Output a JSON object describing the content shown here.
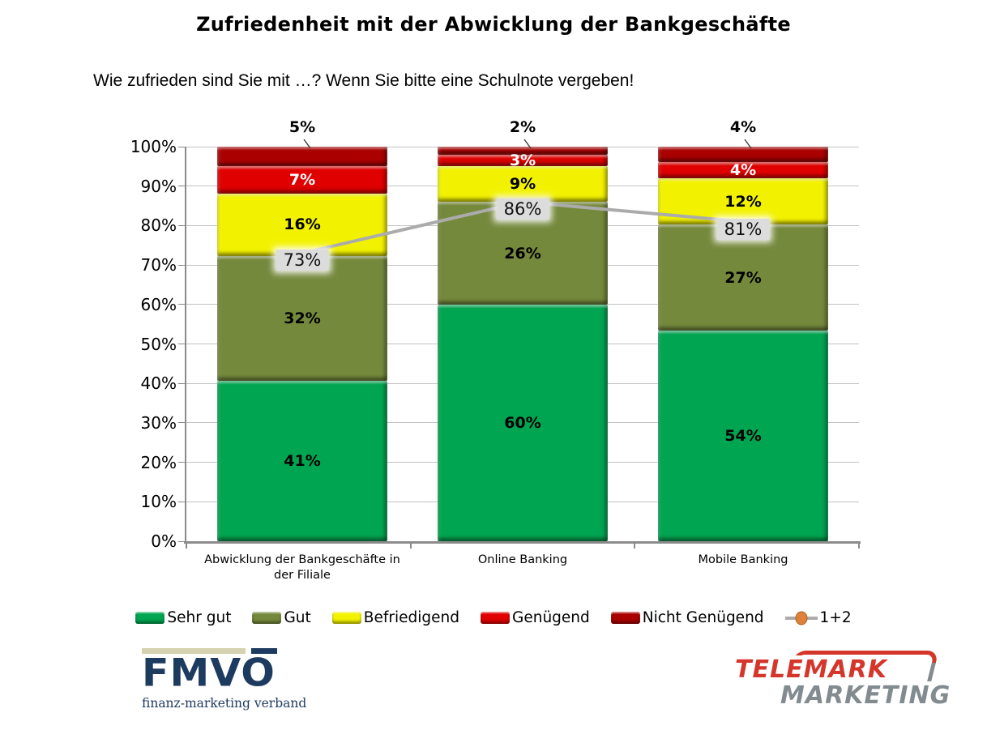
{
  "title": "Zufriedenheit mit der Abwicklung der Bankgeschäfte",
  "question": "Wie zufrieden sind Sie mit …? Wenn Sie bitte eine Schulnote vergeben!",
  "chart_data": {
    "type": "bar",
    "subtype": "stacked-percent-with-line",
    "categories": [
      "Abwicklung der Bankgeschäfte in der Filiale",
      "Online Banking",
      "Mobile Banking"
    ],
    "series": [
      {
        "name": "Sehr gut",
        "color": "#00A551",
        "label_color": "#000000",
        "label_position": "inside",
        "values": [
          41,
          60,
          54
        ]
      },
      {
        "name": "Gut",
        "color": "#75893C",
        "label_color": "#000000",
        "label_position": "inside",
        "values": [
          32,
          26,
          27
        ]
      },
      {
        "name": "Befriedigend",
        "color": "#F2F200",
        "label_color": "#000000",
        "label_position": "inside",
        "values": [
          16,
          9,
          12
        ]
      },
      {
        "name": "Genügend",
        "color": "#E00000",
        "label_color": "#FFFFFF",
        "label_position": "inside",
        "values": [
          7,
          3,
          4
        ]
      },
      {
        "name": "Nicht Genügend",
        "color": "#AA0000",
        "label_color": "#000000",
        "label_position": "above",
        "values": [
          5,
          2,
          4
        ]
      }
    ],
    "line_series": {
      "name": "1+2",
      "values": [
        73,
        86,
        81
      ],
      "line_color": "#ABABAB",
      "marker_color": "#DF813B",
      "label_bg": "#DCDCDC"
    },
    "ylim": [
      0,
      100
    ],
    "ytick_step": 10,
    "ytick_suffix": "%",
    "grid": true,
    "legend_position": "bottom"
  },
  "footer": {
    "fmvo": {
      "wordmark": "FMVO",
      "tagline": "finanz-marketing verband",
      "navy": "#1D3A5F",
      "beige": "#D5D2B0"
    },
    "telemark": {
      "line1": "TELEMARK",
      "line2": "MARKETING",
      "red": "#D5362B",
      "gray": "#828C90"
    }
  }
}
